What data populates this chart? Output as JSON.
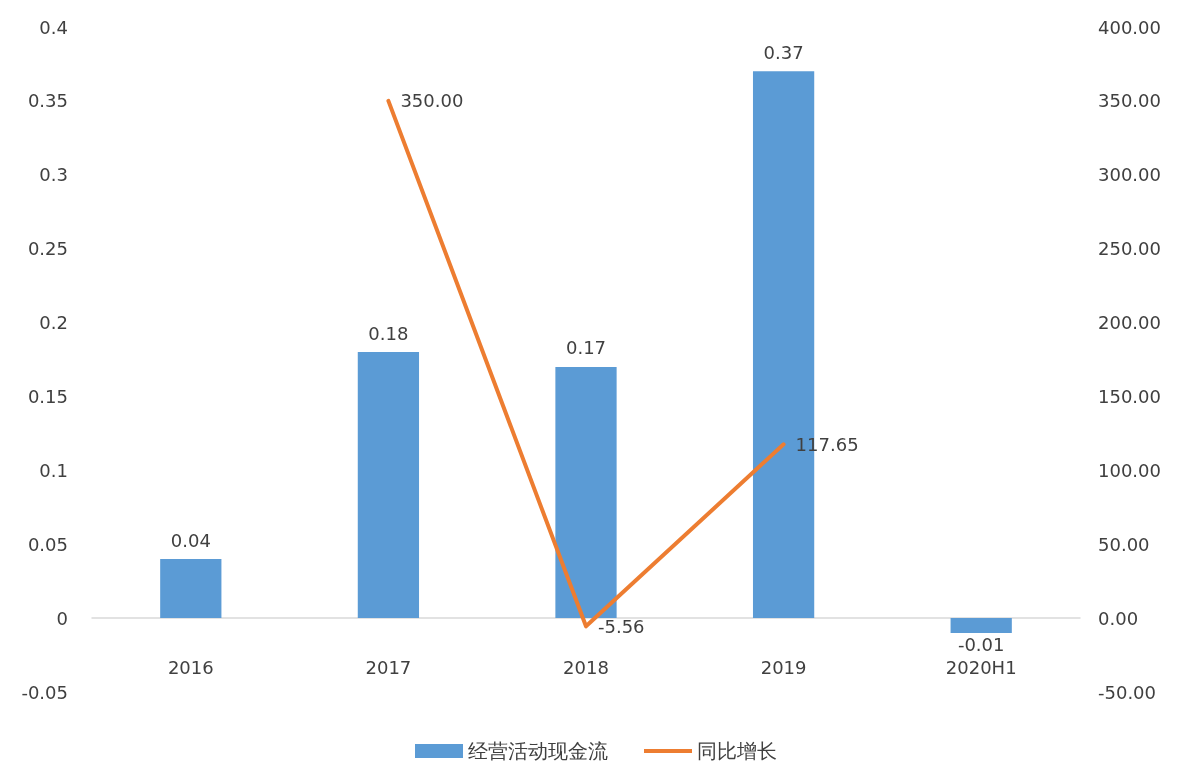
{
  "chart_data": {
    "type": "bar",
    "categories": [
      "2016",
      "2017",
      "2018",
      "2019",
      "2020H1"
    ],
    "series": [
      {
        "name": "经营活动现金流",
        "type": "bar",
        "color": "#5b9bd5",
        "values": [
          0.04,
          0.18,
          0.17,
          0.37,
          -0.01
        ],
        "value_labels": [
          "0.04",
          "0.18",
          "0.17",
          "0.37",
          "-0.01"
        ]
      },
      {
        "name": "同比增长",
        "type": "line",
        "axis": "y2",
        "color": "#ed7d31",
        "values": [
          null,
          350,
          -5.56,
          117.65,
          null
        ],
        "value_labels": [
          null,
          "350.00",
          "-5.56",
          "117.65",
          null
        ]
      }
    ],
    "ylim": [
      -0.05,
      0.4
    ],
    "yticks": [
      -0.05,
      0,
      0.05,
      0.1,
      0.15,
      0.2,
      0.25,
      0.3,
      0.35,
      0.4
    ],
    "y2lim": [
      -50,
      400
    ],
    "y2ticks": [
      {
        "value": -50,
        "label": "-50.00"
      },
      {
        "value": 0,
        "label": "0.00"
      },
      {
        "value": 50,
        "label": "50.00"
      },
      {
        "value": 100,
        "label": "100.00"
      },
      {
        "value": 150,
        "label": "150.00"
      },
      {
        "value": 200,
        "label": "200.00"
      },
      {
        "value": 250,
        "label": "250.00"
      },
      {
        "value": 300,
        "label": "300.00"
      },
      {
        "value": 350,
        "label": "350.00"
      },
      {
        "value": 400,
        "label": "400.00"
      }
    ],
    "grid": false,
    "legend": "bottom",
    "marker": "none",
    "line_style": "solid"
  }
}
